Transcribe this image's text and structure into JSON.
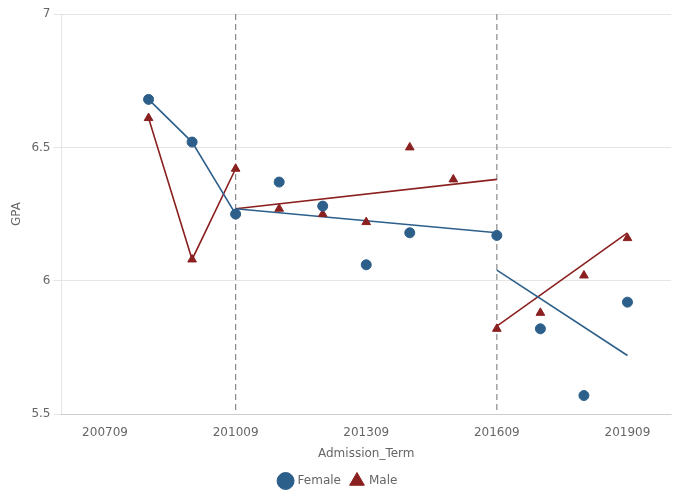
{
  "chart_data": {
    "type": "scatter",
    "x_label": "Admission_Term",
    "y_label": "GPA",
    "xlim": [
      200609,
      202009
    ],
    "xticks": [
      200709,
      201009,
      201309,
      201609,
      201909
    ],
    "ylim": [
      5.5,
      7.0
    ],
    "yticks": [
      5.5,
      6.0,
      6.5,
      7.0
    ],
    "grid": "y",
    "legend": "bottom",
    "vlines": [
      {
        "x": 201009,
        "line_style": "dashed"
      },
      {
        "x": 201609,
        "line_style": "dashed"
      }
    ],
    "series": [
      {
        "name": "Female",
        "color": "#2C5F8A",
        "marker": "circle",
        "x": [
          200809,
          200909,
          201009,
          201109,
          201209,
          201309,
          201409,
          201609,
          201709,
          201809,
          201909
        ],
        "values": [
          6.68,
          6.52,
          6.25,
          6.37,
          6.28,
          6.06,
          6.18,
          6.17,
          5.82,
          5.57,
          5.92
        ],
        "lines": [
          {
            "x": [
              200809,
              200909,
              201009
            ],
            "values": [
              6.68,
              6.52,
              6.25
            ]
          },
          {
            "x": [
              201009,
              201609
            ],
            "values": [
              6.27,
              6.18
            ]
          },
          {
            "x": [
              201609,
              201909
            ],
            "values": [
              6.04,
              5.72
            ]
          }
        ]
      },
      {
        "name": "Male",
        "color": "#8B2020",
        "marker": "triangle",
        "x": [
          200809,
          200909,
          201009,
          201109,
          201209,
          201309,
          201409,
          201509,
          201609,
          201709,
          201809,
          201909
        ],
        "values": [
          6.61,
          6.08,
          6.42,
          6.27,
          6.25,
          6.22,
          6.5,
          6.38,
          5.82,
          5.88,
          6.02,
          6.16
        ],
        "lines": [
          {
            "x": [
              200809,
              200909,
              201009
            ],
            "values": [
              6.61,
              6.08,
              6.42
            ]
          },
          {
            "x": [
              201009,
              201609
            ],
            "values": [
              6.27,
              6.38
            ]
          },
          {
            "x": [
              201609,
              201909
            ],
            "values": [
              5.83,
              6.18
            ]
          }
        ]
      }
    ]
  }
}
